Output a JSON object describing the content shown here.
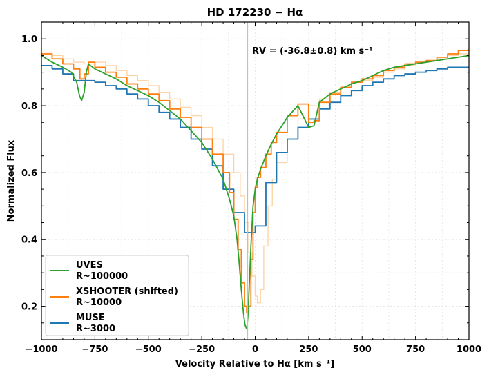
{
  "chart_data": {
    "type": "line",
    "title": "HD 172230 − Hα",
    "xlabel": "Velocity Relative to Hα [km s⁻¹]",
    "ylabel": "Normalized Flux",
    "xlim": [
      -1000,
      1000
    ],
    "ylim": [
      0.1,
      1.05
    ],
    "xticks": [
      -1000,
      -750,
      -500,
      -250,
      0,
      250,
      500,
      750,
      1000
    ],
    "xtick_labels": [
      "−1000",
      "−750",
      "−500",
      "−250",
      "0",
      "250",
      "500",
      "750",
      "1000"
    ],
    "yticks": [
      0.2,
      0.4,
      0.6,
      0.8,
      1.0
    ],
    "ytick_labels": [
      "0.2",
      "0.4",
      "0.6",
      "0.8",
      "1.0"
    ],
    "grid": true,
    "legend_position": "lower-left",
    "annotation": {
      "text": "RV = (-36.8±0.8) km s⁻¹",
      "vline_x": -36.8,
      "vline_color": "#c0c0c0"
    },
    "series": [
      {
        "name": "UVES\nR~100000",
        "legend_lines": [
          "UVES",
          "R~100000"
        ],
        "color": "#2ca02c",
        "step": false,
        "x": [
          -1000,
          -950,
          -900,
          -860,
          -835,
          -822,
          -812,
          -800,
          -790,
          -780,
          -750,
          -700,
          -650,
          -600,
          -550,
          -500,
          -450,
          -400,
          -350,
          -300,
          -250,
          -200,
          -150,
          -120,
          -100,
          -85,
          -75,
          -65,
          -55,
          -48,
          -42,
          -38,
          -34,
          -28,
          -20,
          -10,
          0,
          10,
          25,
          50,
          75,
          100,
          150,
          200,
          250,
          275,
          300,
          350,
          400,
          450,
          500,
          550,
          600,
          650,
          700,
          750,
          800,
          850,
          900,
          950,
          1000
        ],
        "y": [
          0.95,
          0.93,
          0.915,
          0.9,
          0.87,
          0.83,
          0.815,
          0.84,
          0.9,
          0.925,
          0.91,
          0.895,
          0.88,
          0.86,
          0.845,
          0.83,
          0.81,
          0.785,
          0.76,
          0.725,
          0.69,
          0.64,
          0.58,
          0.52,
          0.47,
          0.4,
          0.33,
          0.25,
          0.18,
          0.145,
          0.135,
          0.14,
          0.17,
          0.26,
          0.38,
          0.5,
          0.55,
          0.58,
          0.61,
          0.65,
          0.685,
          0.715,
          0.765,
          0.8,
          0.735,
          0.74,
          0.81,
          0.835,
          0.85,
          0.865,
          0.875,
          0.89,
          0.905,
          0.915,
          0.92,
          0.925,
          0.93,
          0.935,
          0.94,
          0.945,
          0.95
        ]
      },
      {
        "name": "XSHOOTER (shifted)\nR~10000",
        "legend_lines": [
          "XSHOOTER (shifted)",
          "R~10000"
        ],
        "color": "#ff7f0e",
        "step": true,
        "x": [
          -1000,
          -950,
          -900,
          -850,
          -820,
          -800,
          -780,
          -750,
          -700,
          -650,
          -600,
          -550,
          -500,
          -450,
          -400,
          -350,
          -300,
          -250,
          -200,
          -150,
          -120,
          -100,
          -80,
          -65,
          -50,
          -40,
          -30,
          -20,
          -10,
          0,
          10,
          25,
          50,
          75,
          100,
          150,
          200,
          250,
          275,
          300,
          350,
          400,
          450,
          500,
          550,
          600,
          650,
          700,
          750,
          800,
          850,
          900,
          950,
          1000
        ],
        "y": [
          0.955,
          0.94,
          0.925,
          0.91,
          0.88,
          0.895,
          0.93,
          0.915,
          0.9,
          0.885,
          0.865,
          0.85,
          0.835,
          0.815,
          0.79,
          0.765,
          0.735,
          0.7,
          0.655,
          0.6,
          0.54,
          0.46,
          0.37,
          0.27,
          0.2,
          0.18,
          0.2,
          0.34,
          0.48,
          0.555,
          0.585,
          0.615,
          0.655,
          0.69,
          0.72,
          0.77,
          0.805,
          0.75,
          0.755,
          0.81,
          0.835,
          0.855,
          0.87,
          0.88,
          0.89,
          0.905,
          0.915,
          0.925,
          0.93,
          0.935,
          0.945,
          0.955,
          0.965,
          0.97
        ]
      },
      {
        "name": "XSHOOTER (unshifted, faint)",
        "legend_lines": [],
        "color": "#fdd4a8",
        "step": true,
        "x": [
          -1000,
          -950,
          -900,
          -850,
          -800,
          -750,
          -700,
          -650,
          -600,
          -550,
          -500,
          -450,
          -400,
          -350,
          -300,
          -250,
          -200,
          -150,
          -100,
          -70,
          -50,
          -30,
          -15,
          0,
          10,
          25,
          40,
          60,
          80,
          100,
          150,
          200,
          250,
          300,
          350,
          400,
          450,
          500,
          550,
          600,
          650,
          700,
          750,
          800,
          850,
          900,
          950,
          1000
        ],
        "y": [
          0.96,
          0.95,
          0.94,
          0.93,
          0.925,
          0.93,
          0.92,
          0.905,
          0.89,
          0.875,
          0.86,
          0.84,
          0.82,
          0.795,
          0.77,
          0.735,
          0.7,
          0.655,
          0.6,
          0.53,
          0.45,
          0.36,
          0.29,
          0.23,
          0.21,
          0.25,
          0.38,
          0.5,
          0.58,
          0.63,
          0.7,
          0.76,
          0.8,
          0.82,
          0.84,
          0.855,
          0.87,
          0.875,
          0.885,
          0.9,
          0.91,
          0.92,
          0.93,
          0.935,
          0.94,
          0.95,
          0.955,
          0.96
        ]
      },
      {
        "name": "MUSE\nR~3000",
        "legend_lines": [
          "MUSE",
          "R~3000"
        ],
        "color": "#1f77b4",
        "step": true,
        "x": [
          -1000,
          -950,
          -900,
          -850,
          -800,
          -750,
          -700,
          -650,
          -600,
          -550,
          -500,
          -450,
          -400,
          -350,
          -300,
          -250,
          -200,
          -150,
          -100,
          -50,
          0,
          50,
          100,
          150,
          200,
          250,
          300,
          350,
          400,
          450,
          500,
          550,
          600,
          650,
          700,
          750,
          800,
          850,
          900,
          950,
          1000
        ],
        "y": [
          0.92,
          0.91,
          0.895,
          0.875,
          0.875,
          0.87,
          0.86,
          0.85,
          0.835,
          0.82,
          0.8,
          0.78,
          0.76,
          0.735,
          0.7,
          0.67,
          0.62,
          0.55,
          0.48,
          0.42,
          0.44,
          0.57,
          0.66,
          0.7,
          0.735,
          0.76,
          0.79,
          0.81,
          0.83,
          0.845,
          0.86,
          0.87,
          0.88,
          0.89,
          0.895,
          0.9,
          0.905,
          0.91,
          0.915,
          0.915,
          0.915
        ]
      }
    ]
  }
}
